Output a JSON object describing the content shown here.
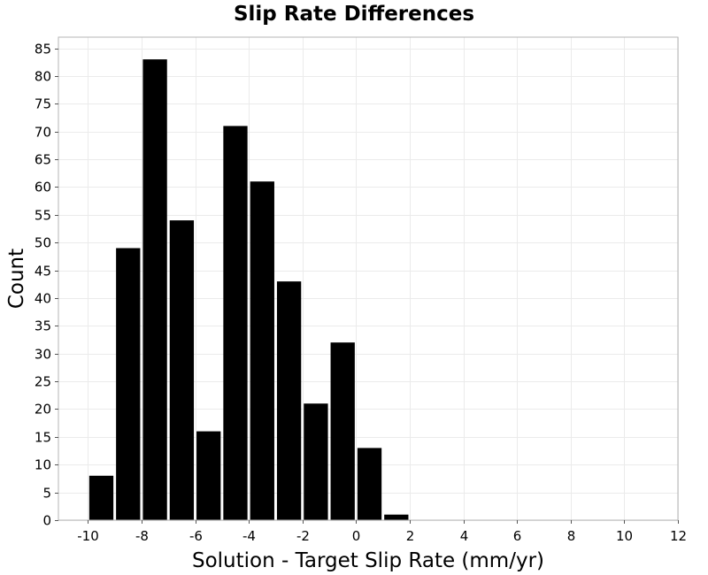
{
  "chart_data": {
    "type": "bar",
    "title": "Slip Rate Differences",
    "xlabel": "Solution - Target Slip Rate (mm/yr)",
    "ylabel": "Count",
    "bin_width": 1,
    "bins": [
      {
        "center": -9.5,
        "count": 8
      },
      {
        "center": -8.5,
        "count": 49
      },
      {
        "center": -7.5,
        "count": 83
      },
      {
        "center": -6.5,
        "count": 54
      },
      {
        "center": -5.5,
        "count": 16
      },
      {
        "center": -4.5,
        "count": 71
      },
      {
        "center": -3.5,
        "count": 61
      },
      {
        "center": -2.5,
        "count": 43
      },
      {
        "center": -1.5,
        "count": 21
      },
      {
        "center": -0.5,
        "count": 32
      },
      {
        "center": 0.5,
        "count": 13
      },
      {
        "center": 1.5,
        "count": 1
      }
    ],
    "xlim": [
      -11.1,
      12
    ],
    "ylim": [
      0,
      87
    ],
    "x_ticks": [
      -10,
      -8,
      -6,
      -4,
      -2,
      0,
      2,
      4,
      6,
      8,
      10,
      12
    ],
    "y_ticks": [
      0,
      5,
      10,
      15,
      20,
      25,
      30,
      35,
      40,
      45,
      50,
      55,
      60,
      65,
      70,
      75,
      80,
      85
    ],
    "grid": true,
    "bar_color": "#000000",
    "grid_color": "#ebebeb",
    "frame_color": "#b4b4b4"
  }
}
